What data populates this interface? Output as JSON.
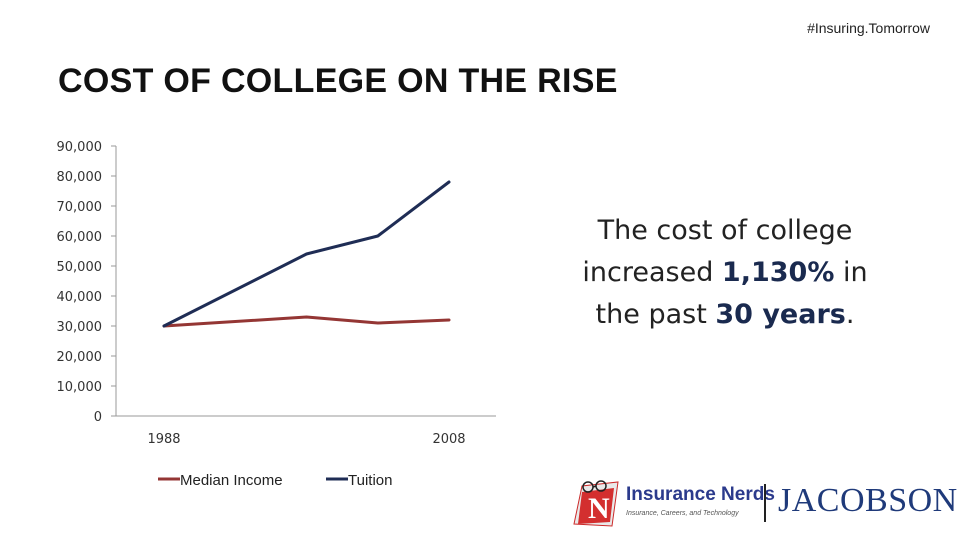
{
  "header": {
    "hashtag": "#Insuring.Tomorrow"
  },
  "slide": {
    "title": "COST OF COLLEGE ON THE RISE"
  },
  "chart_data": {
    "type": "line",
    "x": [
      1988,
      1998,
      2003,
      2008
    ],
    "xticks": [
      "1988",
      "2008"
    ],
    "ylim": [
      0,
      90000
    ],
    "yticks": [
      "0",
      "10,000",
      "20,000",
      "30,000",
      "40,000",
      "50,000",
      "60,000",
      "70,000",
      "80,000",
      "90,000"
    ],
    "grid": false,
    "legend_position": "bottom",
    "series": [
      {
        "name": "Median Income",
        "color": "#943634",
        "values": [
          30000,
          33000,
          31000,
          32000
        ]
      },
      {
        "name": "Tuition",
        "color": "#1f2d55",
        "values": [
          30000,
          54000,
          60000,
          78000
        ]
      }
    ]
  },
  "annotation": {
    "line1": "The cost of college",
    "line2_pre": "increased ",
    "line2_bold": "1,130%",
    "line2_post": " in",
    "line3_pre": "the past ",
    "line3_bold": "30 years",
    "line3_post": "."
  },
  "logos": {
    "insurance_nerds": "Insurance Nerds",
    "insurance_nerds_tagline": "Insurance, Careers, and Technology",
    "jacobson": "JACOBSON"
  }
}
